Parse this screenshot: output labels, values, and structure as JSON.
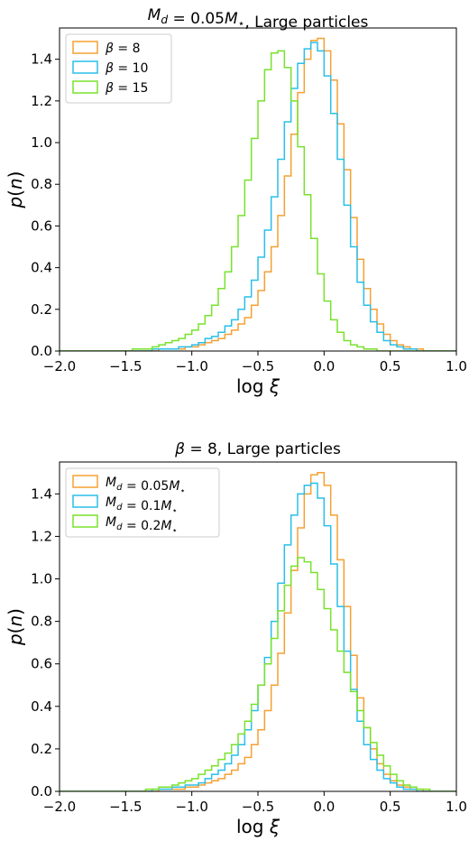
{
  "colors": {
    "orange": "#f5a033",
    "cyan": "#29bfe9",
    "green": "#78e22c"
  },
  "chart_data": [
    {
      "type": "histogram",
      "title": "M_d = 0.05M⋆, Large particles",
      "xlabel": "log ξ",
      "ylabel": "p(n)",
      "xlim": [
        -2.0,
        1.0
      ],
      "ylim": [
        0,
        1.55
      ],
      "xticks": [
        "−2.0",
        "−1.5",
        "−1.0",
        "−0.5",
        "0.0",
        "0.5",
        "1.0"
      ],
      "yticks": [
        "0.0",
        "0.2",
        "0.4",
        "0.6",
        "0.8",
        "1.0",
        "1.2",
        "1.4"
      ],
      "legend_position": "top-left",
      "bin_start": -2.0,
      "bin_width": 0.05,
      "series": [
        {
          "name": "β = 8",
          "color": "#f5a033",
          "values": [
            0,
            0,
            0,
            0,
            0,
            0,
            0,
            0,
            0,
            0,
            0,
            0,
            0,
            0,
            0,
            0.01,
            0.01,
            0.01,
            0.01,
            0.02,
            0.02,
            0.03,
            0.04,
            0.05,
            0.06,
            0.08,
            0.1,
            0.13,
            0.16,
            0.22,
            0.29,
            0.38,
            0.5,
            0.65,
            0.84,
            1.04,
            1.24,
            1.4,
            1.49,
            1.5,
            1.44,
            1.3,
            1.09,
            0.87,
            0.64,
            0.44,
            0.3,
            0.2,
            0.13,
            0.08,
            0.05,
            0.03,
            0.02,
            0.01,
            0.01,
            0,
            0,
            0,
            0,
            0
          ]
        },
        {
          "name": "β = 10",
          "color": "#29bfe9",
          "values": [
            0,
            0,
            0,
            0,
            0,
            0,
            0,
            0,
            0,
            0,
            0,
            0,
            0,
            0,
            0.01,
            0.01,
            0.01,
            0.01,
            0.02,
            0.02,
            0.03,
            0.04,
            0.06,
            0.07,
            0.09,
            0.12,
            0.15,
            0.2,
            0.26,
            0.34,
            0.45,
            0.58,
            0.74,
            0.92,
            1.1,
            1.26,
            1.38,
            1.45,
            1.48,
            1.44,
            1.32,
            1.14,
            0.92,
            0.7,
            0.5,
            0.33,
            0.22,
            0.14,
            0.09,
            0.05,
            0.03,
            0.02,
            0.01,
            0.01,
            0,
            0,
            0,
            0,
            0,
            0
          ]
        },
        {
          "name": "β = 15",
          "color": "#78e22c",
          "values": [
            0,
            0,
            0,
            0,
            0,
            0,
            0,
            0,
            0,
            0,
            0,
            0.01,
            0.01,
            0.01,
            0.02,
            0.03,
            0.04,
            0.05,
            0.06,
            0.08,
            0.1,
            0.13,
            0.17,
            0.22,
            0.3,
            0.38,
            0.5,
            0.65,
            0.82,
            1.02,
            1.2,
            1.35,
            1.43,
            1.44,
            1.36,
            1.2,
            0.98,
            0.75,
            0.54,
            0.37,
            0.24,
            0.15,
            0.09,
            0.05,
            0.03,
            0.02,
            0.01,
            0.01,
            0,
            0,
            0,
            0,
            0,
            0,
            0,
            0,
            0,
            0,
            0,
            0
          ]
        }
      ]
    },
    {
      "type": "histogram",
      "title": "β = 8, Large particles",
      "xlabel": "log ξ",
      "ylabel": "p(n)",
      "xlim": [
        -2.0,
        1.0
      ],
      "ylim": [
        0,
        1.55
      ],
      "xticks": [
        "−2.0",
        "−1.5",
        "−1.0",
        "−0.5",
        "0.0",
        "0.5",
        "1.0"
      ],
      "yticks": [
        "0.0",
        "0.2",
        "0.4",
        "0.6",
        "0.8",
        "1.0",
        "1.2",
        "1.4"
      ],
      "legend_position": "top-left",
      "bin_start": -2.0,
      "bin_width": 0.05,
      "series": [
        {
          "name": "M_d = 0.05M⋆",
          "color": "#f5a033",
          "values": [
            0,
            0,
            0,
            0,
            0,
            0,
            0,
            0,
            0,
            0,
            0,
            0,
            0,
            0,
            0,
            0.01,
            0.01,
            0.01,
            0.01,
            0.02,
            0.02,
            0.03,
            0.04,
            0.05,
            0.06,
            0.08,
            0.1,
            0.13,
            0.16,
            0.22,
            0.29,
            0.38,
            0.5,
            0.65,
            0.84,
            1.04,
            1.24,
            1.4,
            1.49,
            1.5,
            1.44,
            1.3,
            1.09,
            0.87,
            0.64,
            0.44,
            0.3,
            0.2,
            0.13,
            0.08,
            0.05,
            0.03,
            0.02,
            0.01,
            0.01,
            0,
            0,
            0,
            0,
            0
          ]
        },
        {
          "name": "M_d = 0.1M⋆",
          "color": "#29bfe9",
          "values": [
            0,
            0,
            0,
            0,
            0,
            0,
            0,
            0,
            0,
            0,
            0,
            0,
            0,
            0,
            0.01,
            0.01,
            0.01,
            0.02,
            0.02,
            0.03,
            0.03,
            0.04,
            0.06,
            0.08,
            0.1,
            0.13,
            0.17,
            0.22,
            0.29,
            0.38,
            0.5,
            0.63,
            0.8,
            0.98,
            1.16,
            1.3,
            1.4,
            1.44,
            1.45,
            1.38,
            1.25,
            1.07,
            0.87,
            0.66,
            0.48,
            0.33,
            0.22,
            0.15,
            0.1,
            0.06,
            0.04,
            0.02,
            0.01,
            0.01,
            0,
            0,
            0,
            0,
            0,
            0
          ]
        },
        {
          "name": "M_d = 0.2M⋆",
          "color": "#78e22c",
          "values": [
            0,
            0,
            0,
            0,
            0,
            0,
            0,
            0,
            0,
            0,
            0,
            0,
            0,
            0.01,
            0.01,
            0.02,
            0.02,
            0.03,
            0.04,
            0.05,
            0.06,
            0.08,
            0.1,
            0.12,
            0.15,
            0.18,
            0.22,
            0.27,
            0.33,
            0.41,
            0.5,
            0.6,
            0.72,
            0.85,
            0.97,
            1.06,
            1.1,
            1.08,
            1.03,
            0.95,
            0.86,
            0.76,
            0.66,
            0.56,
            0.47,
            0.38,
            0.3,
            0.23,
            0.17,
            0.12,
            0.08,
            0.05,
            0.03,
            0.02,
            0.01,
            0.01,
            0,
            0,
            0,
            0
          ]
        }
      ]
    }
  ]
}
